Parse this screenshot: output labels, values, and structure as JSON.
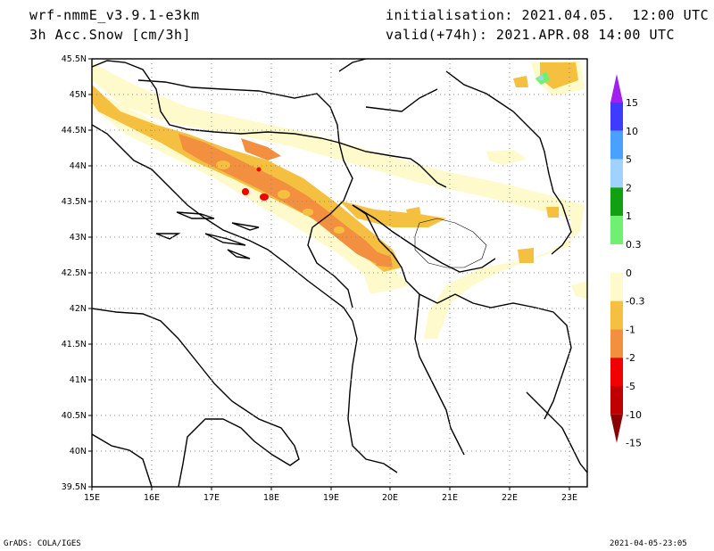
{
  "header": {
    "model": "wrf-nmmE_v3.9.1-e3km",
    "field": "3h Acc.Snow [cm/3h]",
    "init": "initialisation: 2021.04.05.  12:00 UTC",
    "valid": "valid(+74h): 2021.APR.08 14:00 UTC"
  },
  "map": {
    "lat_labels": [
      "45.5N",
      "45N",
      "44.5N",
      "44N",
      "43.5N",
      "43N",
      "42.5N",
      "42N",
      "41.5N",
      "41N",
      "40.5N",
      "40N",
      "39.5N"
    ],
    "lon_labels": [
      "15E",
      "16E",
      "17E",
      "18E",
      "19E",
      "20E",
      "21E",
      "22E",
      "23E"
    ]
  },
  "legend": {
    "labels": [
      "15",
      "10",
      "5",
      "2",
      "1",
      "0.3",
      "0",
      "-0.3",
      "-1",
      "-2",
      "-5",
      "-10",
      "-15"
    ],
    "colors": [
      "#a020f0",
      "#3c3cff",
      "#4aa0ff",
      "#a0d2ff",
      "#10a010",
      "#70f070",
      "#ffffff",
      "#fffacc",
      "#f5c040",
      "#f39040",
      "#f00000",
      "#c00000",
      "#8b0000"
    ]
  },
  "footer": {
    "left": "GrADS: COLA/IGES",
    "right": "2021-04-05-23:05"
  }
}
